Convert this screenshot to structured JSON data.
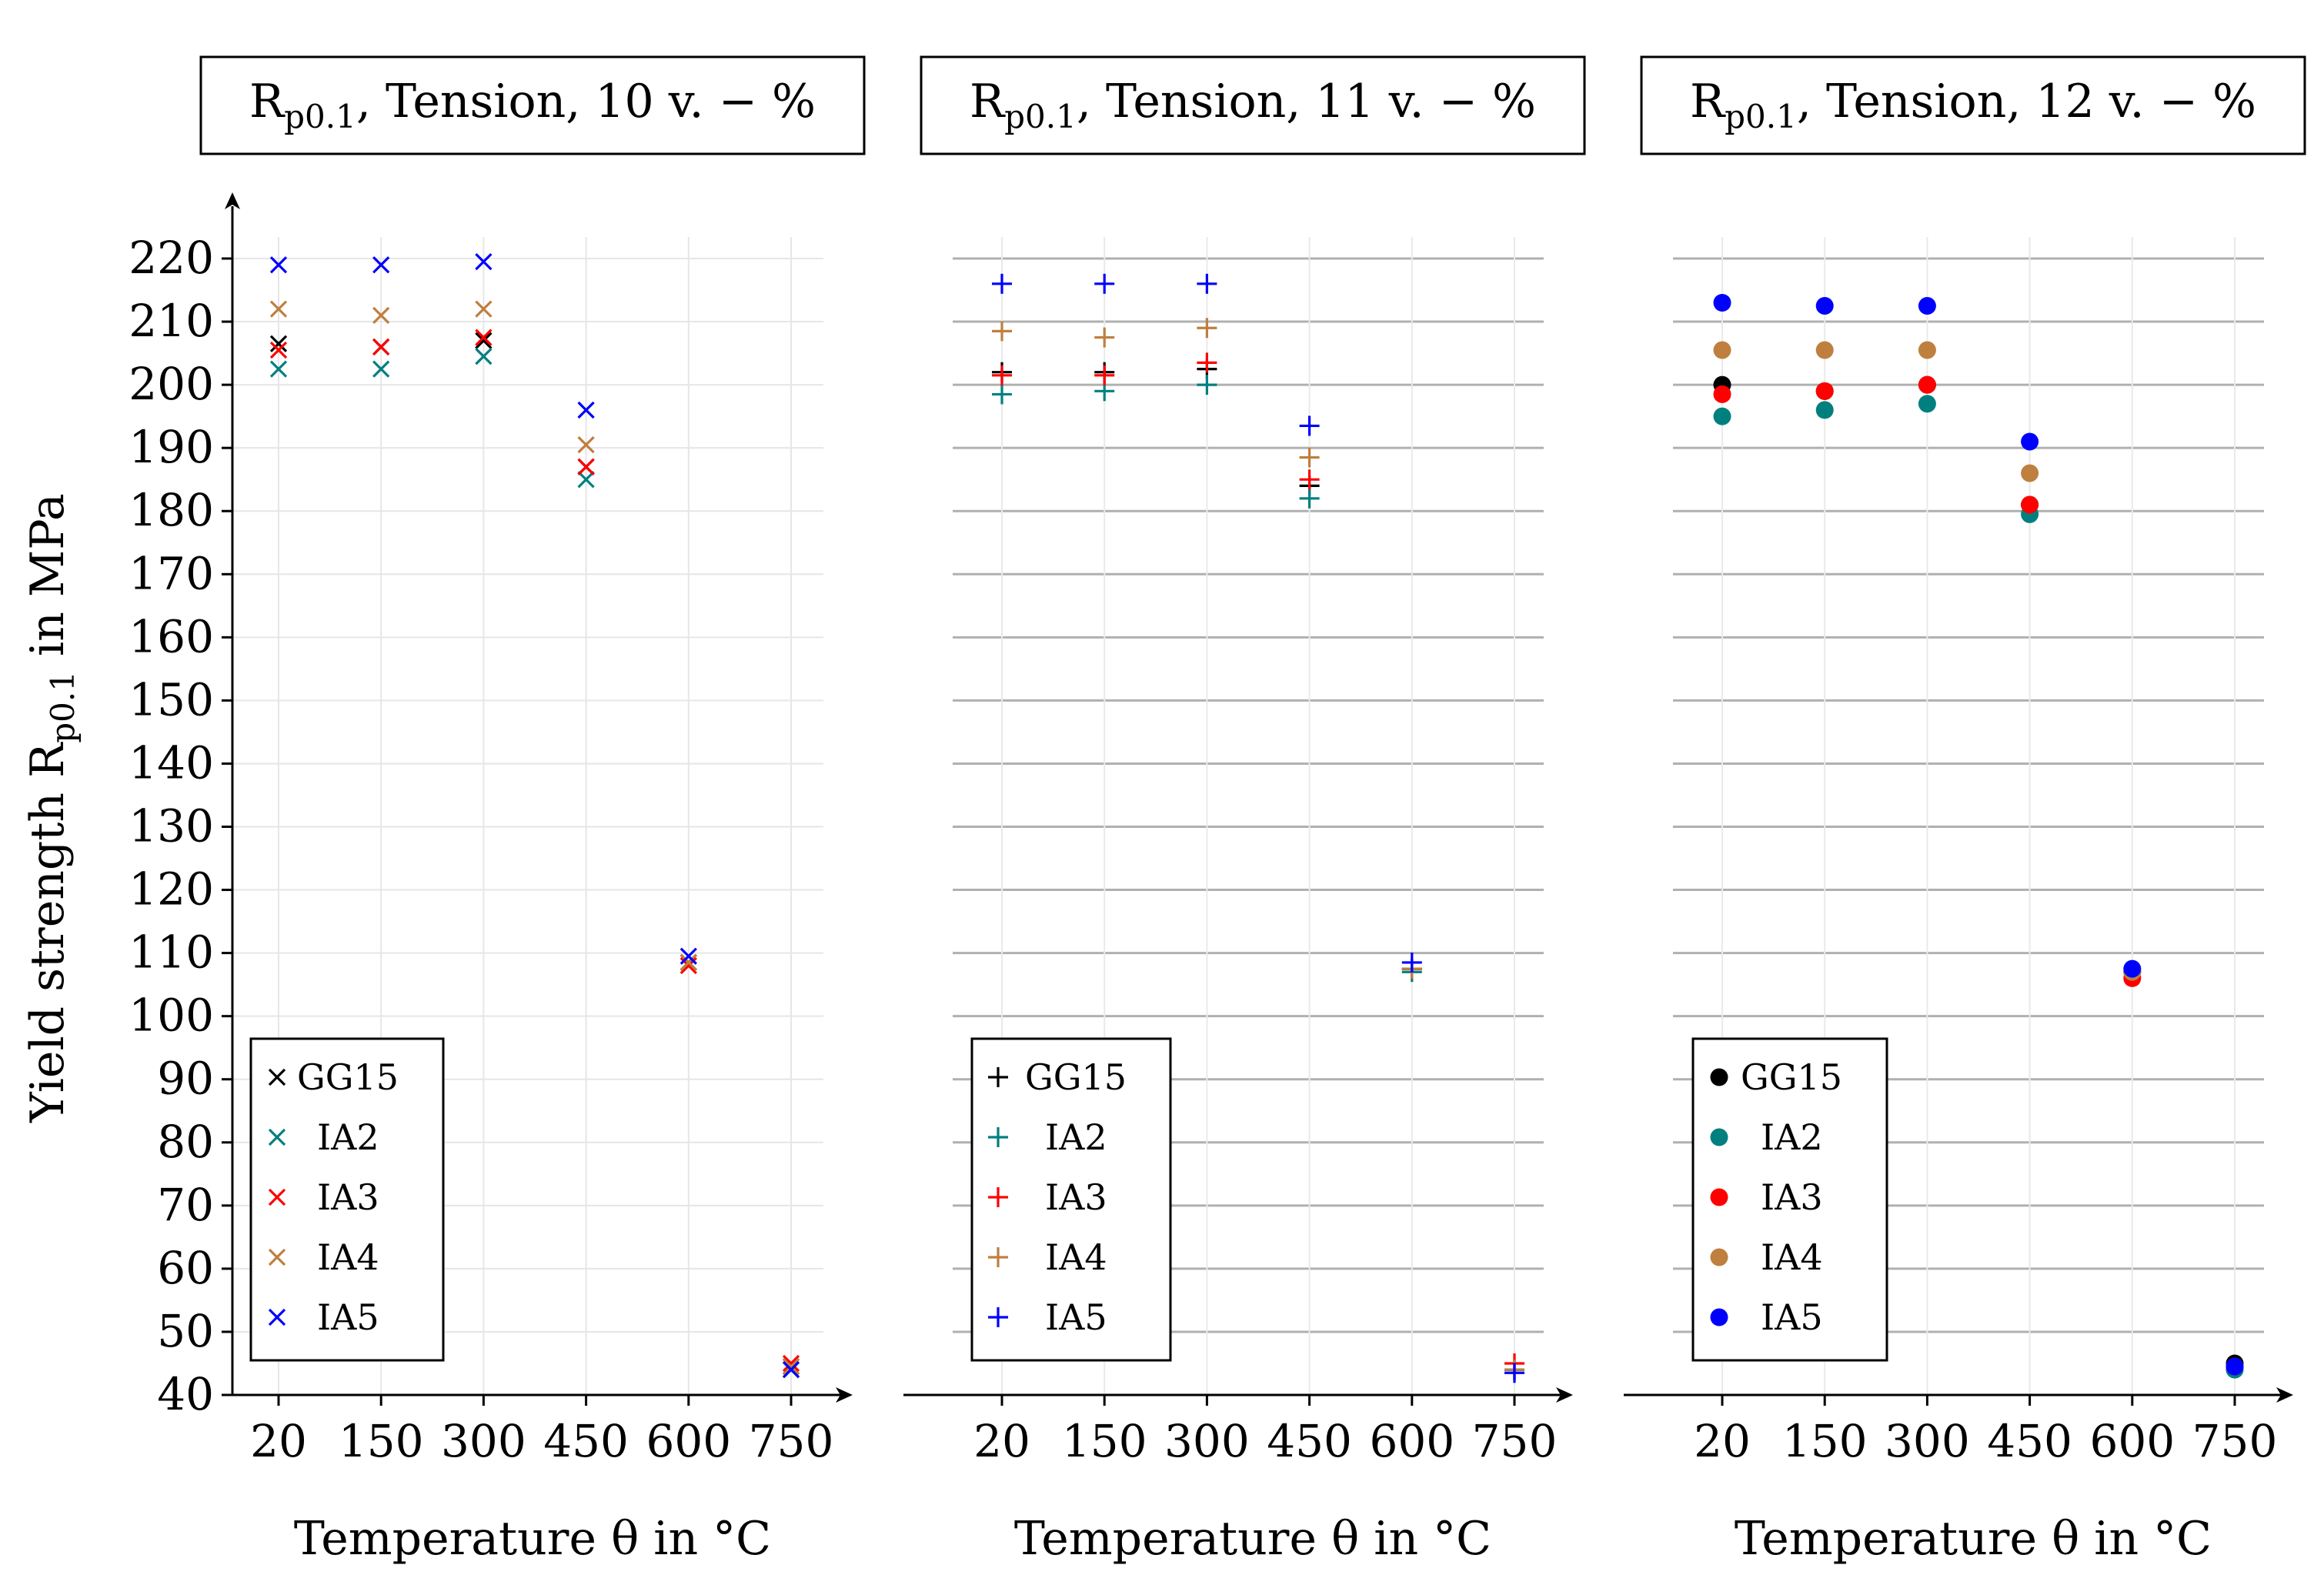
{
  "figure": {
    "ylabel_prefix": "Yield strength R",
    "ylabel_sub": "p0.1",
    "ylabel_suffix": " in MPa",
    "xlabel": "Temperature θ in °C"
  },
  "chart_data": [
    {
      "type": "scatter",
      "title_prefix": "R",
      "title_sub": "p0.1",
      "title_suffix": ", Tension, 10 v. − %",
      "marker": "x",
      "categories": [
        "20",
        "150",
        "300",
        "450",
        "600",
        "750"
      ],
      "ylim": [
        40,
        230
      ],
      "yticks": [
        40,
        50,
        60,
        70,
        80,
        90,
        100,
        110,
        120,
        130,
        140,
        150,
        160,
        170,
        180,
        190,
        200,
        210,
        220
      ],
      "grid_style": "light",
      "series": [
        {
          "name": "GG15",
          "color": "#000000",
          "values": [
            206.5,
            206,
            207,
            187,
            108.5,
            44.5
          ]
        },
        {
          "name": "IA2",
          "color": "#007f7f",
          "values": [
            202.5,
            202.5,
            204.5,
            185,
            108.5,
            44
          ]
        },
        {
          "name": "IA3",
          "color": "#ff0000",
          "values": [
            205.5,
            206,
            207.5,
            187,
            108,
            45
          ]
        },
        {
          "name": "IA4",
          "color": "#bf7f3f",
          "values": [
            212,
            211,
            212,
            190.5,
            108.5,
            44.5
          ]
        },
        {
          "name": "IA5",
          "color": "#0000ff",
          "values": [
            219,
            219,
            219.5,
            196,
            109.5,
            44
          ]
        }
      ]
    },
    {
      "type": "scatter",
      "title_prefix": "R",
      "title_sub": "p0.1",
      "title_suffix": ", Tension, 11 v. − %",
      "marker": "+",
      "categories": [
        "20",
        "150",
        "300",
        "450",
        "600",
        "750"
      ],
      "ylim": [
        40,
        230
      ],
      "yticks": [
        40,
        50,
        60,
        70,
        80,
        90,
        100,
        110,
        120,
        130,
        140,
        150,
        160,
        170,
        180,
        190,
        200,
        210,
        220
      ],
      "grid_style": "strong",
      "series": [
        {
          "name": "GG15",
          "color": "#000000",
          "values": [
            202,
            202,
            202.5,
            184,
            107.5,
            44
          ]
        },
        {
          "name": "IA2",
          "color": "#007f7f",
          "values": [
            198.5,
            199,
            200,
            182,
            107,
            44
          ]
        },
        {
          "name": "IA3",
          "color": "#ff0000",
          "values": [
            201.5,
            201.5,
            203.5,
            185,
            107.5,
            45
          ]
        },
        {
          "name": "IA4",
          "color": "#bf7f3f",
          "values": [
            208.5,
            207.5,
            209,
            188.5,
            107.5,
            44
          ]
        },
        {
          "name": "IA5",
          "color": "#0000ff",
          "values": [
            216,
            216,
            216,
            193.5,
            108.5,
            43.5
          ]
        }
      ]
    },
    {
      "type": "scatter",
      "title_prefix": "R",
      "title_sub": "p0.1",
      "title_suffix": ", Tension, 12 v. − %",
      "marker": "o",
      "categories": [
        "20",
        "150",
        "300",
        "450",
        "600",
        "750"
      ],
      "ylim": [
        40,
        230
      ],
      "yticks": [
        40,
        50,
        60,
        70,
        80,
        90,
        100,
        110,
        120,
        130,
        140,
        150,
        160,
        170,
        180,
        190,
        200,
        210,
        220
      ],
      "grid_style": "strong",
      "series": [
        {
          "name": "GG15",
          "color": "#000000",
          "values": [
            200,
            199,
            200,
            181,
            107,
            45
          ]
        },
        {
          "name": "IA2",
          "color": "#007f7f",
          "values": [
            195,
            196,
            197,
            179.5,
            107,
            44
          ]
        },
        {
          "name": "IA3",
          "color": "#ff0000",
          "values": [
            198.5,
            199,
            200,
            181,
            106,
            44.5
          ]
        },
        {
          "name": "IA4",
          "color": "#bf7f3f",
          "values": [
            205.5,
            205.5,
            205.5,
            186,
            107,
            44.5
          ]
        },
        {
          "name": "IA5",
          "color": "#0000ff",
          "values": [
            213,
            212.5,
            212.5,
            191,
            107.5,
            44.5
          ]
        }
      ]
    }
  ]
}
